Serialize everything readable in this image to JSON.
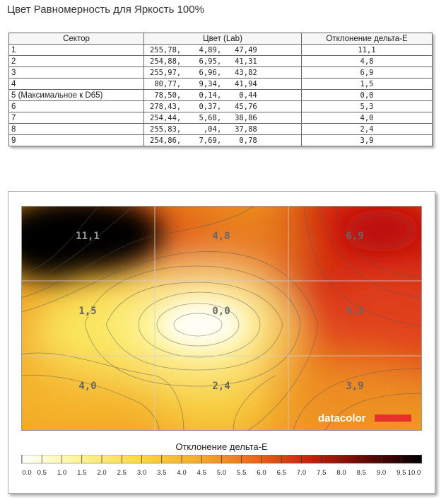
{
  "title": "Цвет Равномерность для Яркость 100%",
  "table": {
    "headers": [
      "Сектор",
      "Цвет (Lab)",
      "Отклонение дельта-E"
    ],
    "rows": [
      {
        "sector": "1",
        "lab": "255,78,    4,89,   47,49",
        "de": "11,1"
      },
      {
        "sector": "2",
        "lab": "254,88,    6,95,   41,31",
        "de": "4,8"
      },
      {
        "sector": "3",
        "lab": "255,97,    6,96,   43,82",
        "de": "6,9"
      },
      {
        "sector": "4",
        "lab": " 80,77,    9,34,   41,94",
        "de": "1,5"
      },
      {
        "sector": "5 (Максимальное к D65)",
        "lab": " 78,50,    0,14,    0,44",
        "de": "0,0"
      },
      {
        "sector": "6",
        "lab": "278,43,    0,37,   45,76",
        "de": "5,3"
      },
      {
        "sector": "7",
        "lab": "254,44,    5,68,   38,86",
        "de": "4,0"
      },
      {
        "sector": "8",
        "lab": "255,83,     ,04,   37,88",
        "de": "2,4"
      },
      {
        "sector": "9",
        "lab": "254,86,    7,69,    0,78",
        "de": "3,9"
      }
    ]
  },
  "heatmap": {
    "sector_labels": [
      "11,1",
      "4,8",
      "6,9",
      "1,5",
      "0,0",
      "5,3",
      "4,0",
      "2,4",
      "3,9"
    ],
    "brand": "datacolor",
    "brand_color": "#e8302a"
  },
  "legend": {
    "title": "Отклонение дельта-E",
    "ticks": [
      "0.0",
      "0.5",
      "1.0",
      "1.5",
      "2.0",
      "2.5",
      "3.0",
      "3.5",
      "4.0",
      "4.5",
      "5.0",
      "5.5",
      "6.0",
      "6.5",
      "7.0",
      "7.5",
      "8.0",
      "8.5",
      "9.0",
      "9.5",
      "10.0"
    ]
  }
}
